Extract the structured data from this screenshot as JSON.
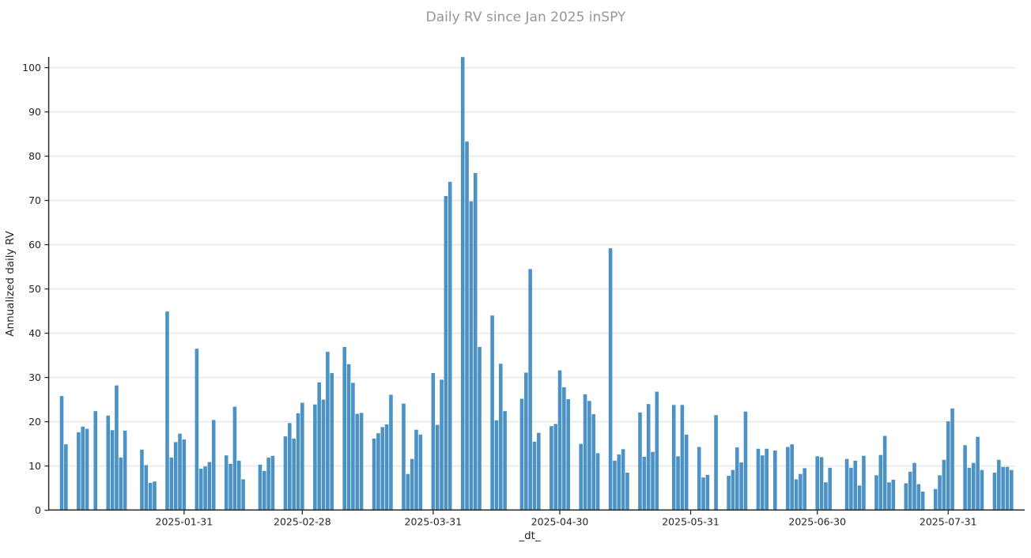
{
  "chart_data": {
    "type": "bar",
    "title": "Daily RV since Jan 2025 inSPY",
    "xlabel": "_dt_",
    "ylabel": "Annualized daily RV",
    "ylim": [
      0,
      102.5
    ],
    "x_domain": [
      "2024-12-30",
      "2025-08-17"
    ],
    "grid": "horizontal-only",
    "legend": "none",
    "bar_color": "#4c92c4",
    "title_color": "#969696",
    "axis_text_color": "#262626",
    "gridline_color": "#e7e7e7",
    "spine_color": "#2b2b2b",
    "y_ticks": [
      0,
      10,
      20,
      30,
      40,
      50,
      60,
      70,
      80,
      90,
      100
    ],
    "x_ticks": [
      "2025-01-31",
      "2025-02-28",
      "2025-03-31",
      "2025-04-30",
      "2025-05-31",
      "2025-06-30",
      "2025-07-31"
    ],
    "series": [
      {
        "name": "Annualized daily RV",
        "points": [
          [
            "2025-01-02",
            25.8
          ],
          [
            "2025-01-03",
            14.9
          ],
          [
            "2025-01-06",
            17.6
          ],
          [
            "2025-01-07",
            18.9
          ],
          [
            "2025-01-08",
            18.4
          ],
          [
            "2025-01-10",
            22.4
          ],
          [
            "2025-01-13",
            21.4
          ],
          [
            "2025-01-14",
            18.1
          ],
          [
            "2025-01-15",
            28.2
          ],
          [
            "2025-01-16",
            11.9
          ],
          [
            "2025-01-17",
            18.0
          ],
          [
            "2025-01-21",
            13.7
          ],
          [
            "2025-01-22",
            10.2
          ],
          [
            "2025-01-23",
            6.2
          ],
          [
            "2025-01-24",
            6.5
          ],
          [
            "2025-01-27",
            44.9
          ],
          [
            "2025-01-28",
            11.9
          ],
          [
            "2025-01-29",
            15.4
          ],
          [
            "2025-01-30",
            17.3
          ],
          [
            "2025-01-31",
            16.0
          ],
          [
            "2025-02-03",
            36.5
          ],
          [
            "2025-02-04",
            9.4
          ],
          [
            "2025-02-05",
            9.9
          ],
          [
            "2025-02-06",
            10.9
          ],
          [
            "2025-02-07",
            20.4
          ],
          [
            "2025-02-10",
            12.4
          ],
          [
            "2025-02-11",
            10.5
          ],
          [
            "2025-02-12",
            23.4
          ],
          [
            "2025-02-13",
            11.2
          ],
          [
            "2025-02-14",
            7.0
          ],
          [
            "2025-02-18",
            10.3
          ],
          [
            "2025-02-19",
            8.9
          ],
          [
            "2025-02-20",
            11.9
          ],
          [
            "2025-02-21",
            12.3
          ],
          [
            "2025-02-24",
            16.7
          ],
          [
            "2025-02-25",
            19.7
          ],
          [
            "2025-02-26",
            16.2
          ],
          [
            "2025-02-27",
            21.9
          ],
          [
            "2025-02-28",
            24.3
          ],
          [
            "2025-03-03",
            23.9
          ],
          [
            "2025-03-04",
            28.9
          ],
          [
            "2025-03-05",
            25.0
          ],
          [
            "2025-03-06",
            35.8
          ],
          [
            "2025-03-07",
            31.0
          ],
          [
            "2025-03-10",
            36.9
          ],
          [
            "2025-03-11",
            33.0
          ],
          [
            "2025-03-12",
            28.8
          ],
          [
            "2025-03-13",
            21.8
          ],
          [
            "2025-03-14",
            22.0
          ],
          [
            "2025-03-17",
            16.2
          ],
          [
            "2025-03-18",
            17.4
          ],
          [
            "2025-03-19",
            18.8
          ],
          [
            "2025-03-20",
            19.4
          ],
          [
            "2025-03-21",
            26.1
          ],
          [
            "2025-03-24",
            24.1
          ],
          [
            "2025-03-25",
            8.2
          ],
          [
            "2025-03-26",
            11.6
          ],
          [
            "2025-03-27",
            18.2
          ],
          [
            "2025-03-28",
            17.1
          ],
          [
            "2025-03-31",
            31.0
          ],
          [
            "2025-04-01",
            19.3
          ],
          [
            "2025-04-02",
            29.5
          ],
          [
            "2025-04-03",
            71.0
          ],
          [
            "2025-04-04",
            74.2
          ],
          [
            "2025-04-07",
            102.4
          ],
          [
            "2025-04-08",
            83.3
          ],
          [
            "2025-04-09",
            69.8
          ],
          [
            "2025-04-10",
            76.2
          ],
          [
            "2025-04-11",
            36.9
          ],
          [
            "2025-04-14",
            44.0
          ],
          [
            "2025-04-15",
            20.3
          ],
          [
            "2025-04-16",
            33.1
          ],
          [
            "2025-04-17",
            22.4
          ],
          [
            "2025-04-21",
            25.2
          ],
          [
            "2025-04-22",
            31.1
          ],
          [
            "2025-04-23",
            54.5
          ],
          [
            "2025-04-24",
            15.5
          ],
          [
            "2025-04-25",
            17.5
          ],
          [
            "2025-04-28",
            19.0
          ],
          [
            "2025-04-29",
            19.5
          ],
          [
            "2025-04-30",
            31.6
          ],
          [
            "2025-05-01",
            27.8
          ],
          [
            "2025-05-02",
            25.1
          ],
          [
            "2025-05-05",
            15.0
          ],
          [
            "2025-05-06",
            26.2
          ],
          [
            "2025-05-07",
            24.7
          ],
          [
            "2025-05-08",
            21.7
          ],
          [
            "2025-05-09",
            12.9
          ],
          [
            "2025-05-12",
            59.2
          ],
          [
            "2025-05-13",
            11.2
          ],
          [
            "2025-05-14",
            12.6
          ],
          [
            "2025-05-15",
            13.8
          ],
          [
            "2025-05-16",
            8.5
          ],
          [
            "2025-05-19",
            22.1
          ],
          [
            "2025-05-20",
            12.1
          ],
          [
            "2025-05-21",
            24.0
          ],
          [
            "2025-05-22",
            13.2
          ],
          [
            "2025-05-23",
            26.8
          ],
          [
            "2025-05-27",
            23.8
          ],
          [
            "2025-05-28",
            12.2
          ],
          [
            "2025-05-29",
            23.8
          ],
          [
            "2025-05-30",
            17.1
          ],
          [
            "2025-06-02",
            14.3
          ],
          [
            "2025-06-03",
            7.4
          ],
          [
            "2025-06-04",
            8.0
          ],
          [
            "2025-06-06",
            21.5
          ],
          [
            "2025-06-09",
            7.8
          ],
          [
            "2025-06-10",
            9.1
          ],
          [
            "2025-06-11",
            14.2
          ],
          [
            "2025-06-12",
            10.8
          ],
          [
            "2025-06-13",
            22.3
          ],
          [
            "2025-06-16",
            13.9
          ],
          [
            "2025-06-17",
            12.4
          ],
          [
            "2025-06-18",
            13.9
          ],
          [
            "2025-06-20",
            13.5
          ],
          [
            "2025-06-23",
            14.3
          ],
          [
            "2025-06-24",
            14.9
          ],
          [
            "2025-06-25",
            7.0
          ],
          [
            "2025-06-26",
            8.2
          ],
          [
            "2025-06-27",
            9.5
          ],
          [
            "2025-06-30",
            12.2
          ],
          [
            "2025-07-01",
            12.0
          ],
          [
            "2025-07-02",
            6.3
          ],
          [
            "2025-07-03",
            9.6
          ],
          [
            "2025-07-07",
            11.6
          ],
          [
            "2025-07-08",
            9.6
          ],
          [
            "2025-07-09",
            11.2
          ],
          [
            "2025-07-10",
            5.6
          ],
          [
            "2025-07-11",
            12.3
          ],
          [
            "2025-07-14",
            7.9
          ],
          [
            "2025-07-15",
            12.5
          ],
          [
            "2025-07-16",
            16.8
          ],
          [
            "2025-07-17",
            6.3
          ],
          [
            "2025-07-18",
            6.9
          ],
          [
            "2025-07-21",
            6.1
          ],
          [
            "2025-07-22",
            8.7
          ],
          [
            "2025-07-23",
            10.7
          ],
          [
            "2025-07-24",
            5.9
          ],
          [
            "2025-07-25",
            4.2
          ],
          [
            "2025-07-28",
            4.8
          ],
          [
            "2025-07-29",
            7.9
          ],
          [
            "2025-07-30",
            11.4
          ],
          [
            "2025-07-31",
            20.1
          ],
          [
            "2025-08-01",
            23.0
          ],
          [
            "2025-08-04",
            14.7
          ],
          [
            "2025-08-05",
            9.6
          ],
          [
            "2025-08-06",
            10.7
          ],
          [
            "2025-08-07",
            16.6
          ],
          [
            "2025-08-08",
            9.1
          ],
          [
            "2025-08-11",
            8.5
          ],
          [
            "2025-08-12",
            11.4
          ],
          [
            "2025-08-13",
            9.8
          ],
          [
            "2025-08-14",
            9.8
          ],
          [
            "2025-08-15",
            9.1
          ]
        ]
      }
    ]
  }
}
